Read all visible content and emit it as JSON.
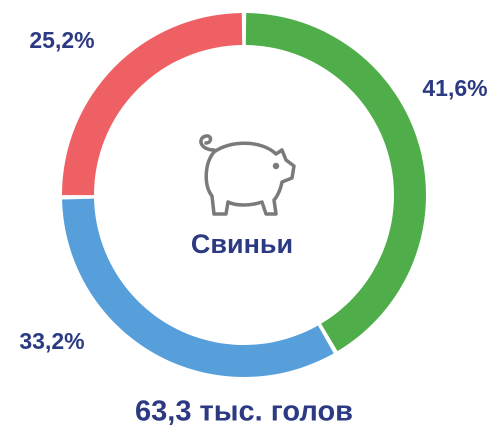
{
  "chart_data": {
    "type": "donut",
    "values": [
      41.6,
      33.2,
      25.2
    ],
    "value_labels": [
      "41,6%",
      "33,2%",
      "25,2%"
    ],
    "colors": [
      "#4fae4a",
      "#579fdb",
      "#ee6063"
    ],
    "title": "Свиньи",
    "subtitle": "63,3 тыс. голов"
  }
}
